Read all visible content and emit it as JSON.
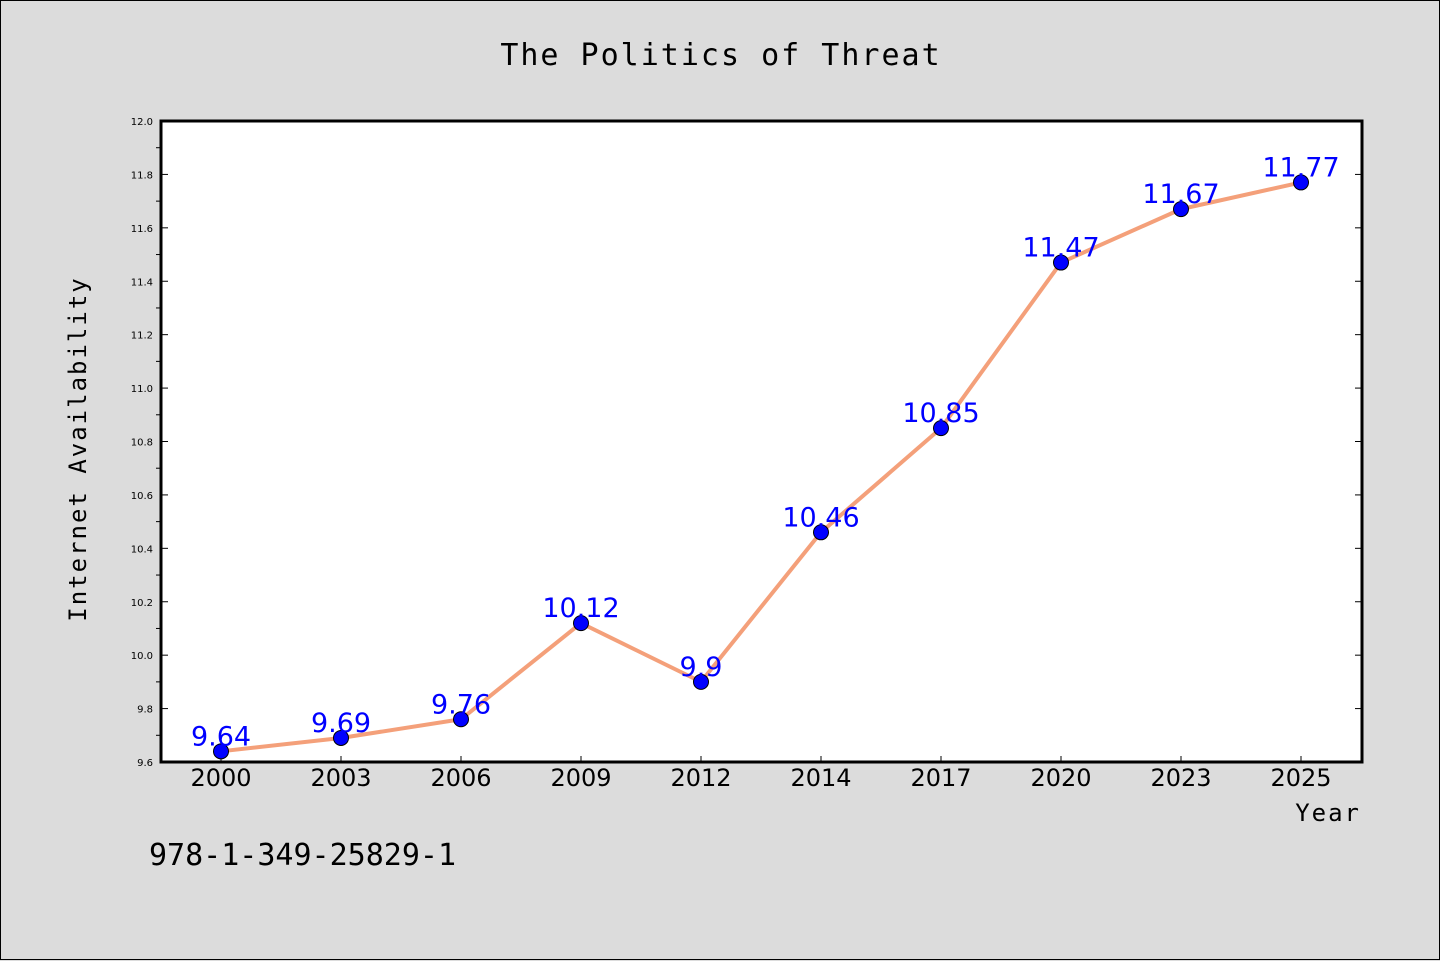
{
  "chart_data": {
    "type": "line",
    "title": "The Politics of Threat",
    "xlabel": "Year",
    "ylabel": "Internet Availability",
    "categories": [
      "2000",
      "2003",
      "2006",
      "2009",
      "2012",
      "2014",
      "2017",
      "2020",
      "2023",
      "2025"
    ],
    "values": [
      9.64,
      9.69,
      9.76,
      10.12,
      9.9,
      10.46,
      10.85,
      11.47,
      11.67,
      11.77
    ],
    "data_labels": [
      "9.64",
      "9.69",
      "9.76",
      "10.12",
      "9.9",
      "10.46",
      "10.85",
      "11.47",
      "11.67",
      "11.77"
    ],
    "ylim": [
      9.6,
      12.0
    ],
    "yticks": [
      "9.6",
      "9.8",
      "10.0",
      "10.2",
      "10.4",
      "10.6",
      "10.8",
      "11.0",
      "11.2",
      "11.4",
      "11.6",
      "11.8",
      "12.0"
    ],
    "grid": false,
    "line_color": "#f4a07a",
    "marker_color": "#0000ff",
    "label_color": "#0000ff"
  },
  "footer": {
    "isbn": "978-1-349-25829-1"
  }
}
